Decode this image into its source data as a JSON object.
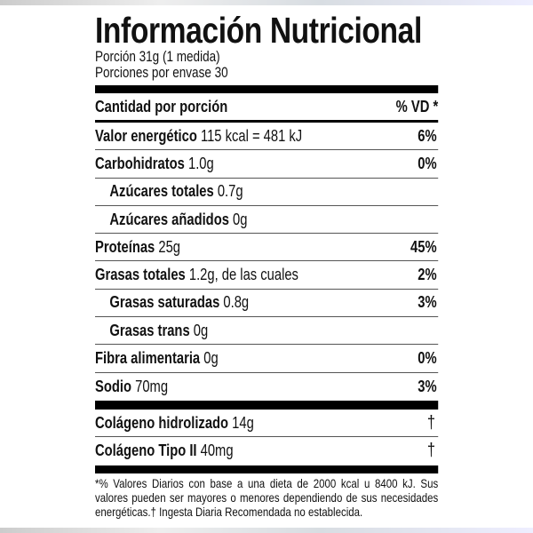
{
  "title": "Información Nutricional",
  "serving": "Porción 31g (1 medida)",
  "servings_per_container": "Porciones por envase 30",
  "header": {
    "left": "Cantidad por porción",
    "right": "% VD *"
  },
  "rows": [
    {
      "name": "Valor energético",
      "amount": "115 kcal = 481 kJ",
      "dv": "6%"
    },
    {
      "name": "Carbohidratos",
      "amount": "1.0g",
      "dv": "0%"
    },
    {
      "name": "Azúcares totales",
      "amount": "0.7g",
      "dv": ""
    },
    {
      "name": "Azúcares añadidos",
      "amount": "0g",
      "dv": ""
    },
    {
      "name": "Proteínas",
      "amount": "25g",
      "dv": "45%"
    },
    {
      "name": "Grasas totales",
      "amount": "1.2g, de las cuales",
      "dv": "2%"
    },
    {
      "name": "Grasas saturadas",
      "amount": "0.8g",
      "dv": "3%"
    },
    {
      "name": "Grasas trans",
      "amount": "0g",
      "dv": ""
    },
    {
      "name": "Fibra alimentaria",
      "amount": "0g",
      "dv": "0%"
    },
    {
      "name": "Sodio",
      "amount": "70mg",
      "dv": "3%"
    }
  ],
  "extra_rows": [
    {
      "name": "Colágeno hidrolizado",
      "amount": "14g",
      "dv": "†"
    },
    {
      "name": "Colágeno Tipo II",
      "amount": "40mg",
      "dv": "†"
    }
  ],
  "footnote": "*% Valores Diarios con base a una dieta de 2000 kcal u 8400 kJ. Sus valores pueden ser mayores o menores dependiendo de sus necesidades energéticas.† Ingesta Diaria Recomendada no establecida."
}
